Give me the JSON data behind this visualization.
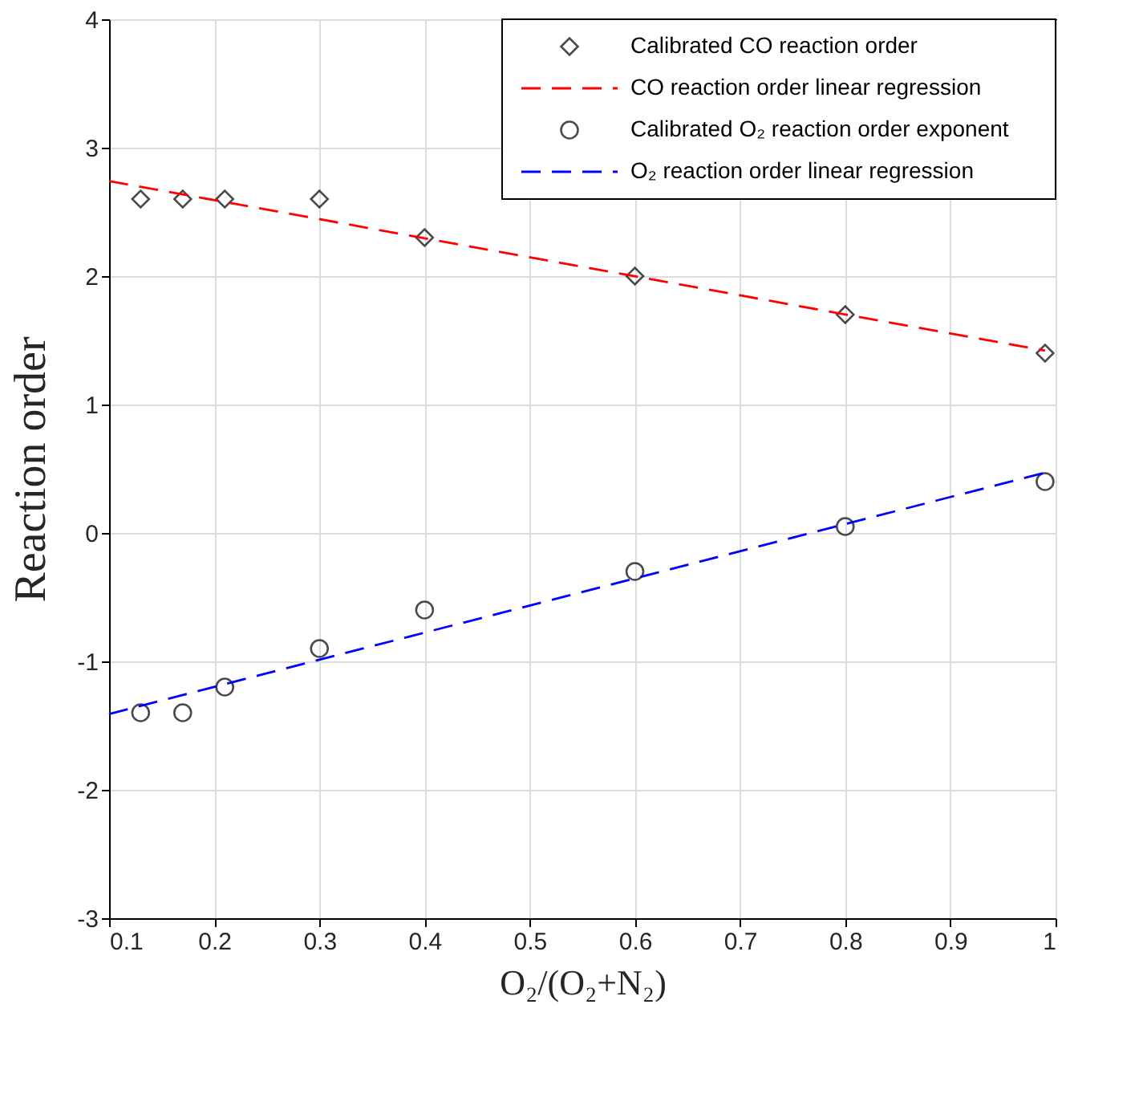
{
  "chart_data": {
    "type": "scatter",
    "xlabel": "O₂/(O₂+N₂)",
    "ylabel": "Reaction order",
    "xlim": [
      0.1,
      1
    ],
    "xticks": [
      0.1,
      0.2,
      0.3,
      0.4,
      0.5,
      0.6,
      0.7,
      0.8,
      0.9,
      1
    ],
    "ylim": [
      -3,
      4
    ],
    "yticks": [
      -3,
      -2,
      -1,
      0,
      1,
      2,
      3,
      4
    ],
    "grid": true,
    "legend": "top right",
    "series": [
      {
        "name": "Calibrated CO reaction order",
        "marker": "diamond",
        "color": "#000000",
        "x": [
          0.13,
          0.17,
          0.21,
          0.3,
          0.4,
          0.6,
          0.8,
          0.99
        ],
        "values": [
          2.6,
          2.6,
          2.6,
          2.6,
          2.3,
          2.0,
          1.7,
          1.4
        ]
      },
      {
        "name": "CO reaction order linear regression",
        "type": "line",
        "line_style": "dashed",
        "color": "#ff0000",
        "x": [
          0.1,
          0.99
        ],
        "values": [
          2.74,
          1.42
        ]
      },
      {
        "name": "Calibrated O₂ reaction order exponent",
        "marker": "circle",
        "color": "#000000",
        "x": [
          0.13,
          0.17,
          0.21,
          0.3,
          0.4,
          0.6,
          0.8,
          0.99
        ],
        "values": [
          -1.4,
          -1.4,
          -1.2,
          -0.9,
          -0.6,
          -0.3,
          0.05,
          0.4
        ]
      },
      {
        "name": "O₂ reaction order linear regression",
        "type": "line",
        "line_style": "dashed",
        "color": "#0000ff",
        "x": [
          0.1,
          0.99
        ],
        "values": [
          -1.41,
          0.47
        ]
      }
    ]
  }
}
